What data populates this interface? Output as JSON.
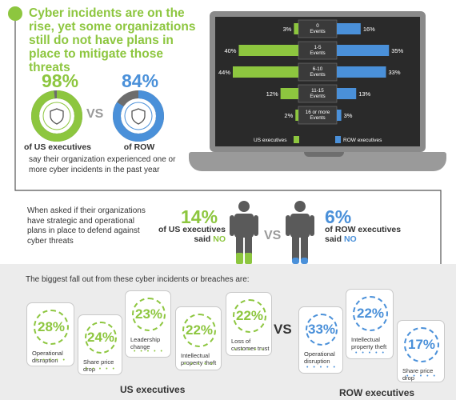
{
  "headline": "Cyber incidents are on the rise, yet some organizations still do not have plans in place to mitigate those threats",
  "top": {
    "us_pct": "98%",
    "us_label": "of US executives",
    "row_pct": "84%",
    "row_label": "of ROW",
    "vs": "VS",
    "caption": "say their organization experienced one or more cyber incidents in the past year"
  },
  "plans": {
    "question": "When asked if their organizations have strategic and operational plans in place to defend against cyber threats",
    "us_pct": "14%",
    "us_line1": "of US executives",
    "us_line2_prefix": "said ",
    "us_line2_no": "NO",
    "row_pct": "6%",
    "row_line1": "of ROW executives",
    "row_line2_prefix": "said ",
    "row_line2_no": "NO",
    "vs": "VS"
  },
  "fallout": {
    "title": "The biggest fall out from these cyber incidents or breaches are:",
    "vs": "VS",
    "us_group": "US executives",
    "row_group": "ROW executives",
    "us_cards": [
      {
        "pct": "28%",
        "label": "Operational disruption"
      },
      {
        "pct": "24%",
        "label": "Share price drop"
      },
      {
        "pct": "23%",
        "label": "Leadership change"
      },
      {
        "pct": "22%",
        "label": "Intellectual property theft"
      },
      {
        "pct": "22%",
        "label": "Loss of customer trust"
      }
    ],
    "row_cards": [
      {
        "pct": "33%",
        "label": "Operational disruption"
      },
      {
        "pct": "22%",
        "label": "Intellectual property theft"
      },
      {
        "pct": "17%",
        "label": "Share price drop"
      }
    ]
  },
  "colors": {
    "green": "#8dc63f",
    "blue": "#4a90d9",
    "gray": "#9a9a9a"
  },
  "chart_data": {
    "type": "bar",
    "categories": [
      "0 Events",
      "1-5 Events",
      "6-10 Events",
      "11-15 Events",
      "16 or more Events"
    ],
    "series": [
      {
        "name": "US executives",
        "values": [
          3,
          40,
          44,
          12,
          2
        ],
        "labels": [
          "3%",
          "40%",
          "44%",
          "12%",
          "2%"
        ]
      },
      {
        "name": "ROW executives",
        "values": [
          16,
          35,
          33,
          13,
          3
        ],
        "labels": [
          "16%",
          "35%",
          "33%",
          "13%",
          "3%"
        ]
      }
    ],
    "legend": "bottom",
    "grid": false
  }
}
